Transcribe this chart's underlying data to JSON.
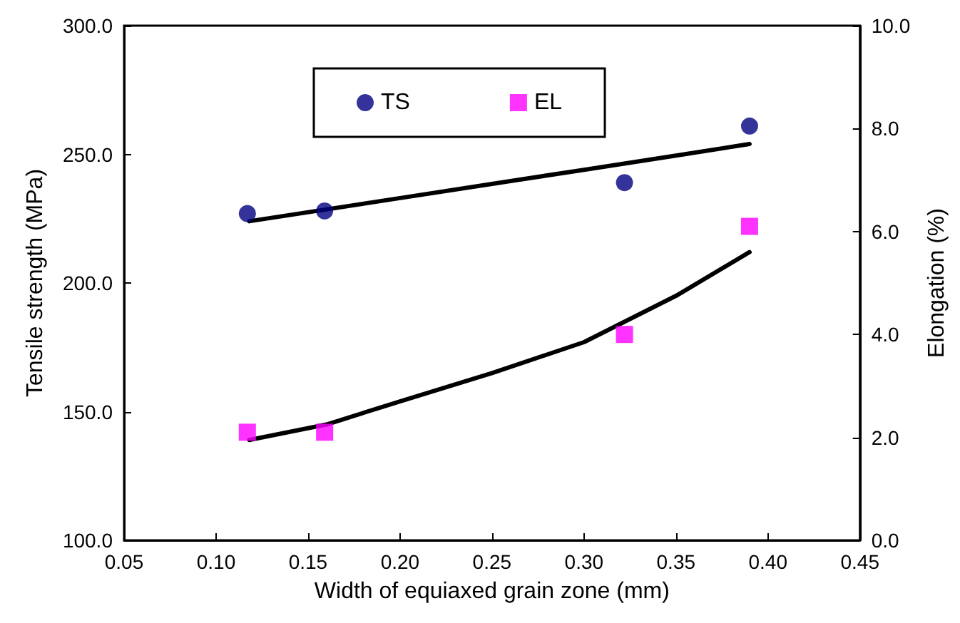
{
  "chart_data": {
    "type": "scatter",
    "xlabel": "Width of equiaxed grain zone (mm)",
    "ylabel": "Tensile strength (MPa)",
    "y2label": "Elongation (%)",
    "xlim": [
      0.05,
      0.45
    ],
    "xticks": [
      {
        "value": 0.05,
        "label": "0.05"
      },
      {
        "value": 0.1,
        "label": "0.10"
      },
      {
        "value": 0.15,
        "label": "0.15"
      },
      {
        "value": 0.2,
        "label": "0.20"
      },
      {
        "value": 0.25,
        "label": "0.25"
      },
      {
        "value": 0.3,
        "label": "0.30"
      },
      {
        "value": 0.35,
        "label": "0.35"
      },
      {
        "value": 0.4,
        "label": "0.40"
      },
      {
        "value": 0.45,
        "label": "0.45"
      }
    ],
    "ylim": [
      100,
      300
    ],
    "yticks": [
      {
        "value": 100,
        "label": "100.0"
      },
      {
        "value": 150,
        "label": "150.0"
      },
      {
        "value": 200,
        "label": "200.0"
      },
      {
        "value": 250,
        "label": "250.0"
      },
      {
        "value": 300,
        "label": "300.0"
      }
    ],
    "y2lim": [
      0,
      10
    ],
    "y2ticks": [
      {
        "value": 0,
        "label": "0.0"
      },
      {
        "value": 2,
        "label": "2.0"
      },
      {
        "value": 4,
        "label": "4.0"
      },
      {
        "value": 6,
        "label": "6.0"
      },
      {
        "value": 8,
        "label": "8.0"
      },
      {
        "value": 10,
        "label": "10.0"
      }
    ],
    "grid": false,
    "legend": "top",
    "series": [
      {
        "name": "TS",
        "marker": "circle",
        "color": "#000080",
        "x": [
          0.117,
          0.159,
          0.322,
          0.39
        ],
        "values": [
          227,
          228,
          239,
          261
        ]
      },
      {
        "name": "EL",
        "marker": "square",
        "color": "#ff00ff",
        "axis": "y2",
        "x": [
          0.117,
          0.159,
          0.322,
          0.39
        ],
        "values": [
          2.1,
          2.1,
          4.0,
          6.1
        ]
      },
      {
        "type": "line",
        "marker": "none",
        "color": "#000000",
        "x": [
          0.118,
          0.2,
          0.25,
          0.3,
          0.35,
          0.39
        ],
        "values": [
          224,
          233,
          238.5,
          244,
          249.5,
          254
        ]
      },
      {
        "type": "line",
        "marker": "none",
        "color": "#000000",
        "axis": "y2",
        "x": [
          0.118,
          0.16,
          0.2,
          0.25,
          0.3,
          0.35,
          0.39
        ],
        "values": [
          1.95,
          2.25,
          2.7,
          3.25,
          3.85,
          4.75,
          5.6
        ]
      }
    ]
  }
}
